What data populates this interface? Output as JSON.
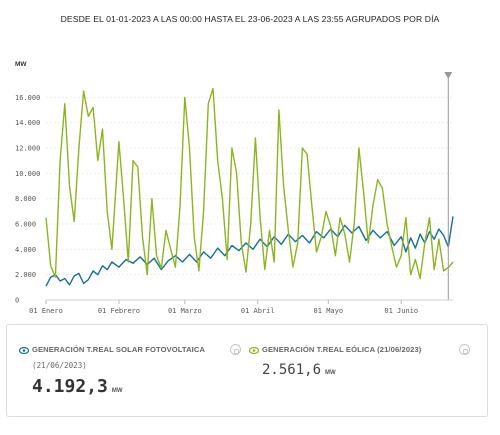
{
  "chart_title": "DESDE EL 01-01-2023 A LAS 00:00 HASTA EL 23-06-2023 A LAS 23:55 AGRUPADOS POR DÍA",
  "chart_data": {
    "type": "line",
    "x_start": "2023-01-01",
    "x_end": "2023-06-23",
    "y_unit": "MW",
    "ylim": [
      0,
      18000
    ],
    "ytick_labels": [
      "0",
      "2.000",
      "4.000",
      "6.000",
      "8.000",
      "10.000",
      "12.000",
      "14.000",
      "16.000"
    ],
    "ytick_values": [
      0,
      2000,
      4000,
      6000,
      8000,
      10000,
      12000,
      14000,
      16000
    ],
    "xtick_labels": [
      "01 Enero",
      "01 Febrero",
      "01 Marzo",
      "01 Abril",
      "01 Mayo",
      "01 Junio"
    ],
    "xtick_dates": [
      "2023-01-01",
      "2023-02-01",
      "2023-03-01",
      "2023-04-01",
      "2023-05-01",
      "2023-06-01"
    ],
    "grid": true,
    "cursor_date": "2023-06-21",
    "series": [
      {
        "name": "GENERACIÓN T.REAL SOLAR FOTOVOLTAICA",
        "color": "#1a6d94",
        "points": [
          [
            "2023-01-01",
            1100
          ],
          [
            "2023-01-03",
            1800
          ],
          [
            "2023-01-05",
            2000
          ],
          [
            "2023-01-07",
            1500
          ],
          [
            "2023-01-09",
            1700
          ],
          [
            "2023-01-11",
            1200
          ],
          [
            "2023-01-13",
            1900
          ],
          [
            "2023-01-15",
            2100
          ],
          [
            "2023-01-17",
            1300
          ],
          [
            "2023-01-19",
            1600
          ],
          [
            "2023-01-21",
            2300
          ],
          [
            "2023-01-23",
            2000
          ],
          [
            "2023-01-25",
            2700
          ],
          [
            "2023-01-27",
            2400
          ],
          [
            "2023-01-29",
            3000
          ],
          [
            "2023-02-01",
            2600
          ],
          [
            "2023-02-04",
            3200
          ],
          [
            "2023-02-07",
            2900
          ],
          [
            "2023-02-10",
            3400
          ],
          [
            "2023-02-13",
            2800
          ],
          [
            "2023-02-16",
            3300
          ],
          [
            "2023-02-19",
            2400
          ],
          [
            "2023-02-22",
            3100
          ],
          [
            "2023-02-25",
            3500
          ],
          [
            "2023-02-28",
            3000
          ],
          [
            "2023-03-03",
            3600
          ],
          [
            "2023-03-06",
            3000
          ],
          [
            "2023-03-09",
            3800
          ],
          [
            "2023-03-12",
            3300
          ],
          [
            "2023-03-15",
            4100
          ],
          [
            "2023-03-18",
            3500
          ],
          [
            "2023-03-21",
            4300
          ],
          [
            "2023-03-24",
            3900
          ],
          [
            "2023-03-27",
            4500
          ],
          [
            "2023-03-30",
            4000
          ],
          [
            "2023-04-02",
            4800
          ],
          [
            "2023-04-05",
            4200
          ],
          [
            "2023-04-08",
            5000
          ],
          [
            "2023-04-11",
            4400
          ],
          [
            "2023-04-14",
            5200
          ],
          [
            "2023-04-17",
            4600
          ],
          [
            "2023-04-20",
            5100
          ],
          [
            "2023-04-23",
            4500
          ],
          [
            "2023-04-26",
            5400
          ],
          [
            "2023-04-29",
            4900
          ],
          [
            "2023-05-02",
            5600
          ],
          [
            "2023-05-05",
            5000
          ],
          [
            "2023-05-08",
            5900
          ],
          [
            "2023-05-11",
            5300
          ],
          [
            "2023-05-14",
            5800
          ],
          [
            "2023-05-17",
            4700
          ],
          [
            "2023-05-20",
            5500
          ],
          [
            "2023-05-23",
            4900
          ],
          [
            "2023-05-26",
            5400
          ],
          [
            "2023-05-29",
            4300
          ],
          [
            "2023-06-01",
            5000
          ],
          [
            "2023-06-03",
            3800
          ],
          [
            "2023-06-05",
            4900
          ],
          [
            "2023-06-07",
            4100
          ],
          [
            "2023-06-09",
            5200
          ],
          [
            "2023-06-11",
            4500
          ],
          [
            "2023-06-13",
            5400
          ],
          [
            "2023-06-15",
            4800
          ],
          [
            "2023-06-17",
            5600
          ],
          [
            "2023-06-19",
            5100
          ],
          [
            "2023-06-21",
            4200
          ],
          [
            "2023-06-23",
            6600
          ]
        ]
      },
      {
        "name": "GENERACIÓN T.REAL EÓLICA",
        "color": "#8cb422",
        "points": [
          [
            "2023-01-01",
            6500
          ],
          [
            "2023-01-03",
            2700
          ],
          [
            "2023-01-05",
            1800
          ],
          [
            "2023-01-07",
            11000
          ],
          [
            "2023-01-09",
            15500
          ],
          [
            "2023-01-11",
            9000
          ],
          [
            "2023-01-13",
            6200
          ],
          [
            "2023-01-15",
            12000
          ],
          [
            "2023-01-17",
            16500
          ],
          [
            "2023-01-19",
            14500
          ],
          [
            "2023-01-21",
            15200
          ],
          [
            "2023-01-23",
            11000
          ],
          [
            "2023-01-25",
            13500
          ],
          [
            "2023-01-27",
            7000
          ],
          [
            "2023-01-29",
            4000
          ],
          [
            "2023-02-01",
            12500
          ],
          [
            "2023-02-03",
            8000
          ],
          [
            "2023-02-05",
            3000
          ],
          [
            "2023-02-07",
            11000
          ],
          [
            "2023-02-09",
            10500
          ],
          [
            "2023-02-11",
            5000
          ],
          [
            "2023-02-13",
            2000
          ],
          [
            "2023-02-15",
            8000
          ],
          [
            "2023-02-17",
            3500
          ],
          [
            "2023-02-19",
            2500
          ],
          [
            "2023-02-21",
            5500
          ],
          [
            "2023-02-23",
            4000
          ],
          [
            "2023-02-25",
            2600
          ],
          [
            "2023-02-27",
            7500
          ],
          [
            "2023-03-01",
            16000
          ],
          [
            "2023-03-03",
            12000
          ],
          [
            "2023-03-05",
            5000
          ],
          [
            "2023-03-07",
            2300
          ],
          [
            "2023-03-09",
            7000
          ],
          [
            "2023-03-11",
            15500
          ],
          [
            "2023-03-13",
            16700
          ],
          [
            "2023-03-15",
            11000
          ],
          [
            "2023-03-17",
            8000
          ],
          [
            "2023-03-19",
            3200
          ],
          [
            "2023-03-21",
            12000
          ],
          [
            "2023-03-23",
            10000
          ],
          [
            "2023-03-25",
            4500
          ],
          [
            "2023-03-27",
            2200
          ],
          [
            "2023-03-29",
            6000
          ],
          [
            "2023-03-31",
            12800
          ],
          [
            "2023-04-02",
            6500
          ],
          [
            "2023-04-04",
            2400
          ],
          [
            "2023-04-06",
            5500
          ],
          [
            "2023-04-08",
            3000
          ],
          [
            "2023-04-10",
            15000
          ],
          [
            "2023-04-12",
            9000
          ],
          [
            "2023-04-14",
            5500
          ],
          [
            "2023-04-16",
            2600
          ],
          [
            "2023-04-18",
            4500
          ],
          [
            "2023-04-20",
            12000
          ],
          [
            "2023-04-22",
            11500
          ],
          [
            "2023-04-24",
            7500
          ],
          [
            "2023-04-26",
            3800
          ],
          [
            "2023-04-28",
            5000
          ],
          [
            "2023-04-30",
            7000
          ],
          [
            "2023-05-02",
            5800
          ],
          [
            "2023-05-04",
            3500
          ],
          [
            "2023-05-06",
            6500
          ],
          [
            "2023-05-08",
            5200
          ],
          [
            "2023-05-10",
            3000
          ],
          [
            "2023-05-12",
            6000
          ],
          [
            "2023-05-14",
            12000
          ],
          [
            "2023-05-16",
            8500
          ],
          [
            "2023-05-18",
            4500
          ],
          [
            "2023-05-20",
            7500
          ],
          [
            "2023-05-22",
            9500
          ],
          [
            "2023-05-24",
            8800
          ],
          [
            "2023-05-26",
            6000
          ],
          [
            "2023-05-28",
            4200
          ],
          [
            "2023-05-30",
            2600
          ],
          [
            "2023-06-01",
            3500
          ],
          [
            "2023-06-03",
            6500
          ],
          [
            "2023-06-05",
            2000
          ],
          [
            "2023-06-07",
            3200
          ],
          [
            "2023-06-09",
            1700
          ],
          [
            "2023-06-11",
            4500
          ],
          [
            "2023-06-13",
            6500
          ],
          [
            "2023-06-15",
            2400
          ],
          [
            "2023-06-17",
            4800
          ],
          [
            "2023-06-19",
            2300
          ],
          [
            "2023-06-21",
            2562
          ],
          [
            "2023-06-23",
            3000
          ]
        ]
      }
    ]
  },
  "legend": [
    {
      "name": "GENERACIÓN T.REAL SOLAR FOTOVOLTAICA",
      "date": "(21/06/2023)",
      "value": "4.192,3",
      "unit": "MW",
      "color": "#1a6d94"
    },
    {
      "name": "GENERACIÓN T.REAL EÓLICA (21/06/2023)",
      "value": "2.561,6",
      "unit": "MW",
      "color": "#8cb422"
    }
  ]
}
